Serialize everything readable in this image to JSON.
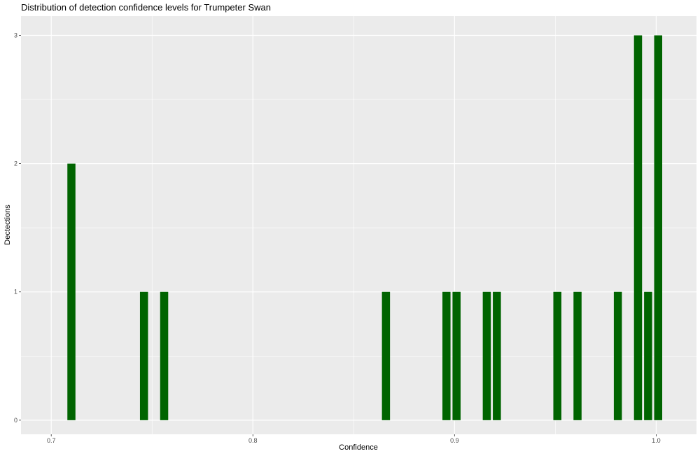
{
  "chart_data": {
    "type": "bar",
    "title": "Distribution of detection confidence levels for Trumpeter Swan",
    "xlabel": "Confidence",
    "ylabel": "Dectections",
    "xlim": [
      0.685,
      1.02
    ],
    "ylim": [
      -0.11,
      3.15
    ],
    "bar_width": 0.004,
    "x_ticks": [
      0.7,
      0.8,
      0.9,
      1.0
    ],
    "x_tick_labels": [
      "0.7",
      "0.8",
      "0.9",
      "1.0"
    ],
    "y_ticks": [
      0,
      1,
      2,
      3
    ],
    "y_tick_labels": [
      "0",
      "1",
      "2",
      "3"
    ],
    "grid": true,
    "panel_background": "#ebebeb",
    "grid_color": "#ffffff",
    "bar_color": "#006400",
    "x": [
      0.71,
      0.746,
      0.756,
      0.916,
      0.921,
      0.866,
      0.896,
      0.901,
      0.951,
      0.961,
      0.981,
      0.991,
      0.996,
      1.001
    ],
    "values": [
      2,
      1,
      1,
      1,
      1,
      1,
      1,
      1,
      1,
      1,
      1,
      3,
      1,
      3
    ]
  }
}
